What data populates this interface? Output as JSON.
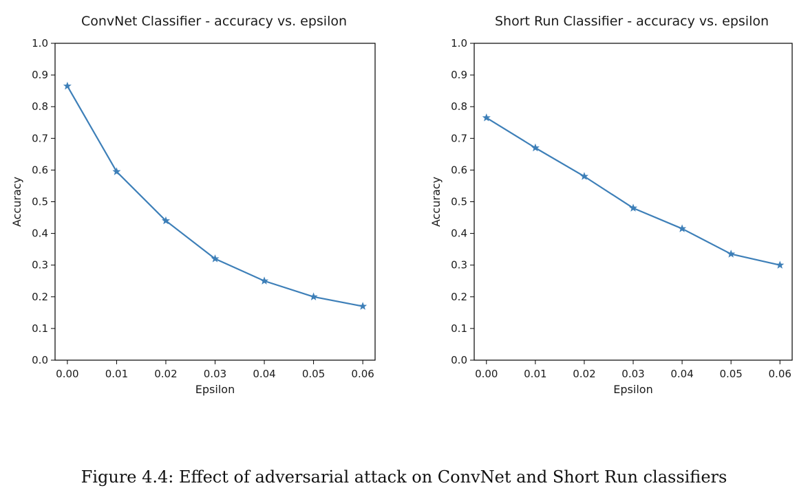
{
  "colors": {
    "series": "#3d7fb8",
    "axis": "#000000",
    "text": "#1a1a1a"
  },
  "chart_data": [
    {
      "type": "line",
      "title": "ConvNet Classifier - accuracy vs. epsilon",
      "xlabel": "Epsilon",
      "ylabel": "Accuracy",
      "x": [
        0.0,
        0.01,
        0.02,
        0.03,
        0.04,
        0.05,
        0.06
      ],
      "xticks": [
        "0.00",
        "0.01",
        "0.02",
        "0.03",
        "0.04",
        "0.05",
        "0.06"
      ],
      "yticks": [
        "0.0",
        "0.1",
        "0.2",
        "0.3",
        "0.4",
        "0.5",
        "0.6",
        "0.7",
        "0.8",
        "0.9",
        "1.0"
      ],
      "ylim": [
        0,
        1
      ],
      "xlim": [
        -0.0025,
        0.0625
      ],
      "marker": "star",
      "grid": false,
      "series": [
        {
          "values": [
            0.865,
            0.595,
            0.44,
            0.32,
            0.25,
            0.2,
            0.17
          ]
        }
      ]
    },
    {
      "type": "line",
      "title": "Short Run Classifier - accuracy vs. epsilon",
      "xlabel": "Epsilon",
      "ylabel": "Accuracy",
      "x": [
        0.0,
        0.01,
        0.02,
        0.03,
        0.04,
        0.05,
        0.06
      ],
      "xticks": [
        "0.00",
        "0.01",
        "0.02",
        "0.03",
        "0.04",
        "0.05",
        "0.06"
      ],
      "yticks": [
        "0.0",
        "0.1",
        "0.2",
        "0.3",
        "0.4",
        "0.5",
        "0.6",
        "0.7",
        "0.8",
        "0.9",
        "1.0"
      ],
      "ylim": [
        0,
        1
      ],
      "xlim": [
        -0.0025,
        0.0625
      ],
      "marker": "star",
      "grid": false,
      "series": [
        {
          "values": [
            0.765,
            0.67,
            0.58,
            0.48,
            0.415,
            0.335,
            0.3
          ]
        }
      ]
    }
  ],
  "caption": "Figure 4.4: Effect of adversarial attack on ConvNet and Short Run classifiers"
}
